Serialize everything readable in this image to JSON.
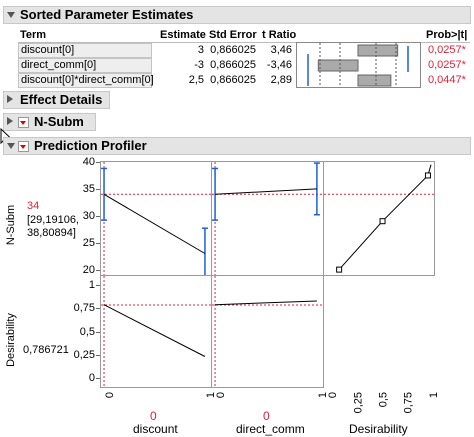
{
  "sorted_estimates": {
    "title": "Sorted Parameter Estimates",
    "columns": [
      "Term",
      "Estimate",
      "Std Error",
      "t Ratio",
      "Prob>|t|"
    ],
    "rows": [
      {
        "term": "discount[0]",
        "estimate": "3",
        "std_error": "0,866025",
        "t_ratio": "3,46",
        "prob": "0,0257*",
        "bar_fraction": 0.64,
        "bar_sign": "positive"
      },
      {
        "term": "direct_comm[0]",
        "estimate": "-3",
        "std_error": "0,866025",
        "t_ratio": "-3,46",
        "prob": "0,0257*",
        "bar_fraction": 0.64,
        "bar_sign": "negative"
      },
      {
        "term": "discount[0]*direct_comm[0]",
        "estimate": "2,5",
        "std_error": "0,866025",
        "t_ratio": "2,89",
        "prob": "0,0447*",
        "bar_fraction": 0.53,
        "bar_sign": "positive"
      }
    ]
  },
  "effect_details": {
    "title": "Effect Details"
  },
  "nsubm": {
    "title": "N-Subm"
  },
  "profiler": {
    "title": "Prediction Profiler",
    "response": {
      "label": "N-Subm",
      "current_value": "34",
      "interval_line1": "[29,19106,",
      "interval_line2": "38,80894]",
      "ticks": [
        "40",
        "35",
        "30",
        "25",
        "20"
      ]
    },
    "desirability": {
      "label": "Desirability",
      "current_value": "0,786721",
      "ticks": [
        "1",
        "0,75",
        "0,5",
        "0,25",
        "0"
      ]
    },
    "factors": [
      {
        "name": "discount",
        "current": "0",
        "ticks": [
          "0",
          "1"
        ]
      },
      {
        "name": "direct_comm",
        "current": "0",
        "ticks": [
          "0",
          "1"
        ]
      },
      {
        "name": "Desirability",
        "current": "",
        "ticks": [
          "0",
          "0,25",
          "0,5",
          "0,75",
          "1"
        ]
      }
    ]
  },
  "chart_data": [
    {
      "type": "line",
      "panel": "N-Subm vs discount",
      "x": [
        0,
        1
      ],
      "y": [
        34,
        23
      ],
      "ci_low": [
        29.2,
        18.6
      ],
      "ci_high": [
        38.8,
        27.7
      ],
      "reference_y": 34,
      "reference_x": 0,
      "ylim": [
        19,
        40
      ],
      "xlim": [
        -0.03,
        1.06
      ]
    },
    {
      "type": "line",
      "panel": "N-Subm vs direct_comm",
      "x": [
        0,
        1
      ],
      "y": [
        34,
        35
      ],
      "ci_low": [
        29.2,
        30.2
      ],
      "ci_high": [
        38.8,
        39.8
      ],
      "reference_y": 34,
      "reference_x": 0,
      "ylim": [
        19,
        40
      ],
      "xlim": [
        -0.03,
        1.06
      ]
    },
    {
      "type": "line",
      "panel": "N-Subm desirability function",
      "x": [
        0.12,
        0.55,
        1.0,
        1.03
      ],
      "y": [
        20,
        29,
        37.5,
        39.5
      ],
      "handles_x": [
        0.12,
        0.55,
        1.0
      ],
      "handles_y": [
        20,
        29,
        37.5
      ],
      "reference_y": 34,
      "xlim": [
        -0.03,
        1.06
      ],
      "ylim": [
        19,
        40
      ]
    },
    {
      "type": "line",
      "panel": "Desirability vs discount",
      "x": [
        0,
        1
      ],
      "y": [
        0.79,
        0.23
      ],
      "reference_y": 0.786721,
      "reference_x": 0,
      "ylim": [
        -0.1,
        1.1
      ],
      "xlim": [
        -0.03,
        1.06
      ]
    },
    {
      "type": "line",
      "panel": "Desirability vs direct_comm",
      "x": [
        0,
        1
      ],
      "y": [
        0.79,
        0.83
      ],
      "reference_y": 0.786721,
      "reference_x": 0,
      "ylim": [
        -0.1,
        1.1
      ],
      "xlim": [
        -0.03,
        1.06
      ]
    }
  ]
}
